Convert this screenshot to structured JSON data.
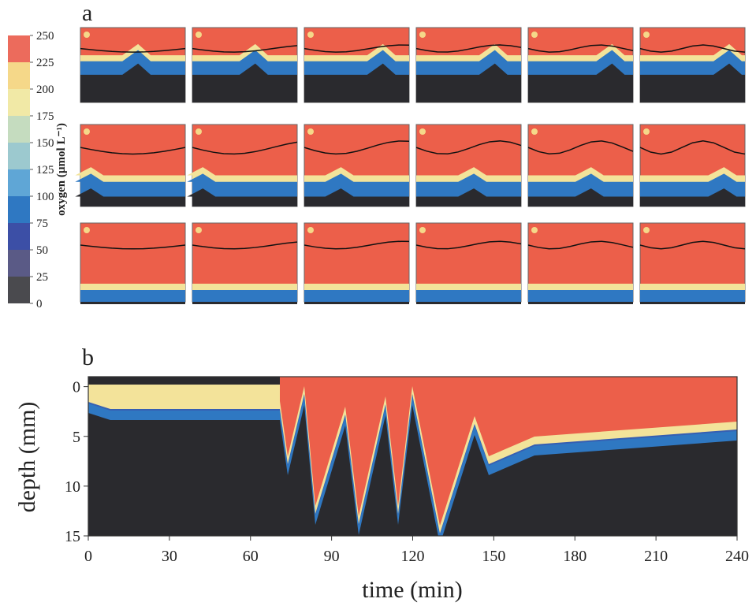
{
  "panel_a": {
    "label": "a",
    "colorbar": {
      "label": "oxygen (µmol L⁻¹)",
      "lim": [
        0,
        250
      ],
      "ticks": [
        0,
        25,
        50,
        75,
        100,
        125,
        150,
        175,
        200,
        225,
        250
      ],
      "colors": [
        "#4a4a4e",
        "#5a5a86",
        "#3c4fa6",
        "#2f78c2",
        "#5fa6d6",
        "#9cc9cf",
        "#c5dcbf",
        "#f1e9a6",
        "#f5d889",
        "#ec6b5c"
      ]
    }
  },
  "chart_data": {
    "type": "heatmap",
    "panel_label": "b",
    "xlabel": "time (min)",
    "ylabel": "depth (mm)",
    "xlim": [
      0,
      240
    ],
    "xticks": [
      0,
      30,
      60,
      90,
      120,
      150,
      180,
      210,
      240
    ],
    "ylim": [
      15,
      -1
    ],
    "yticks": [
      0,
      5,
      10,
      15
    ]
  }
}
